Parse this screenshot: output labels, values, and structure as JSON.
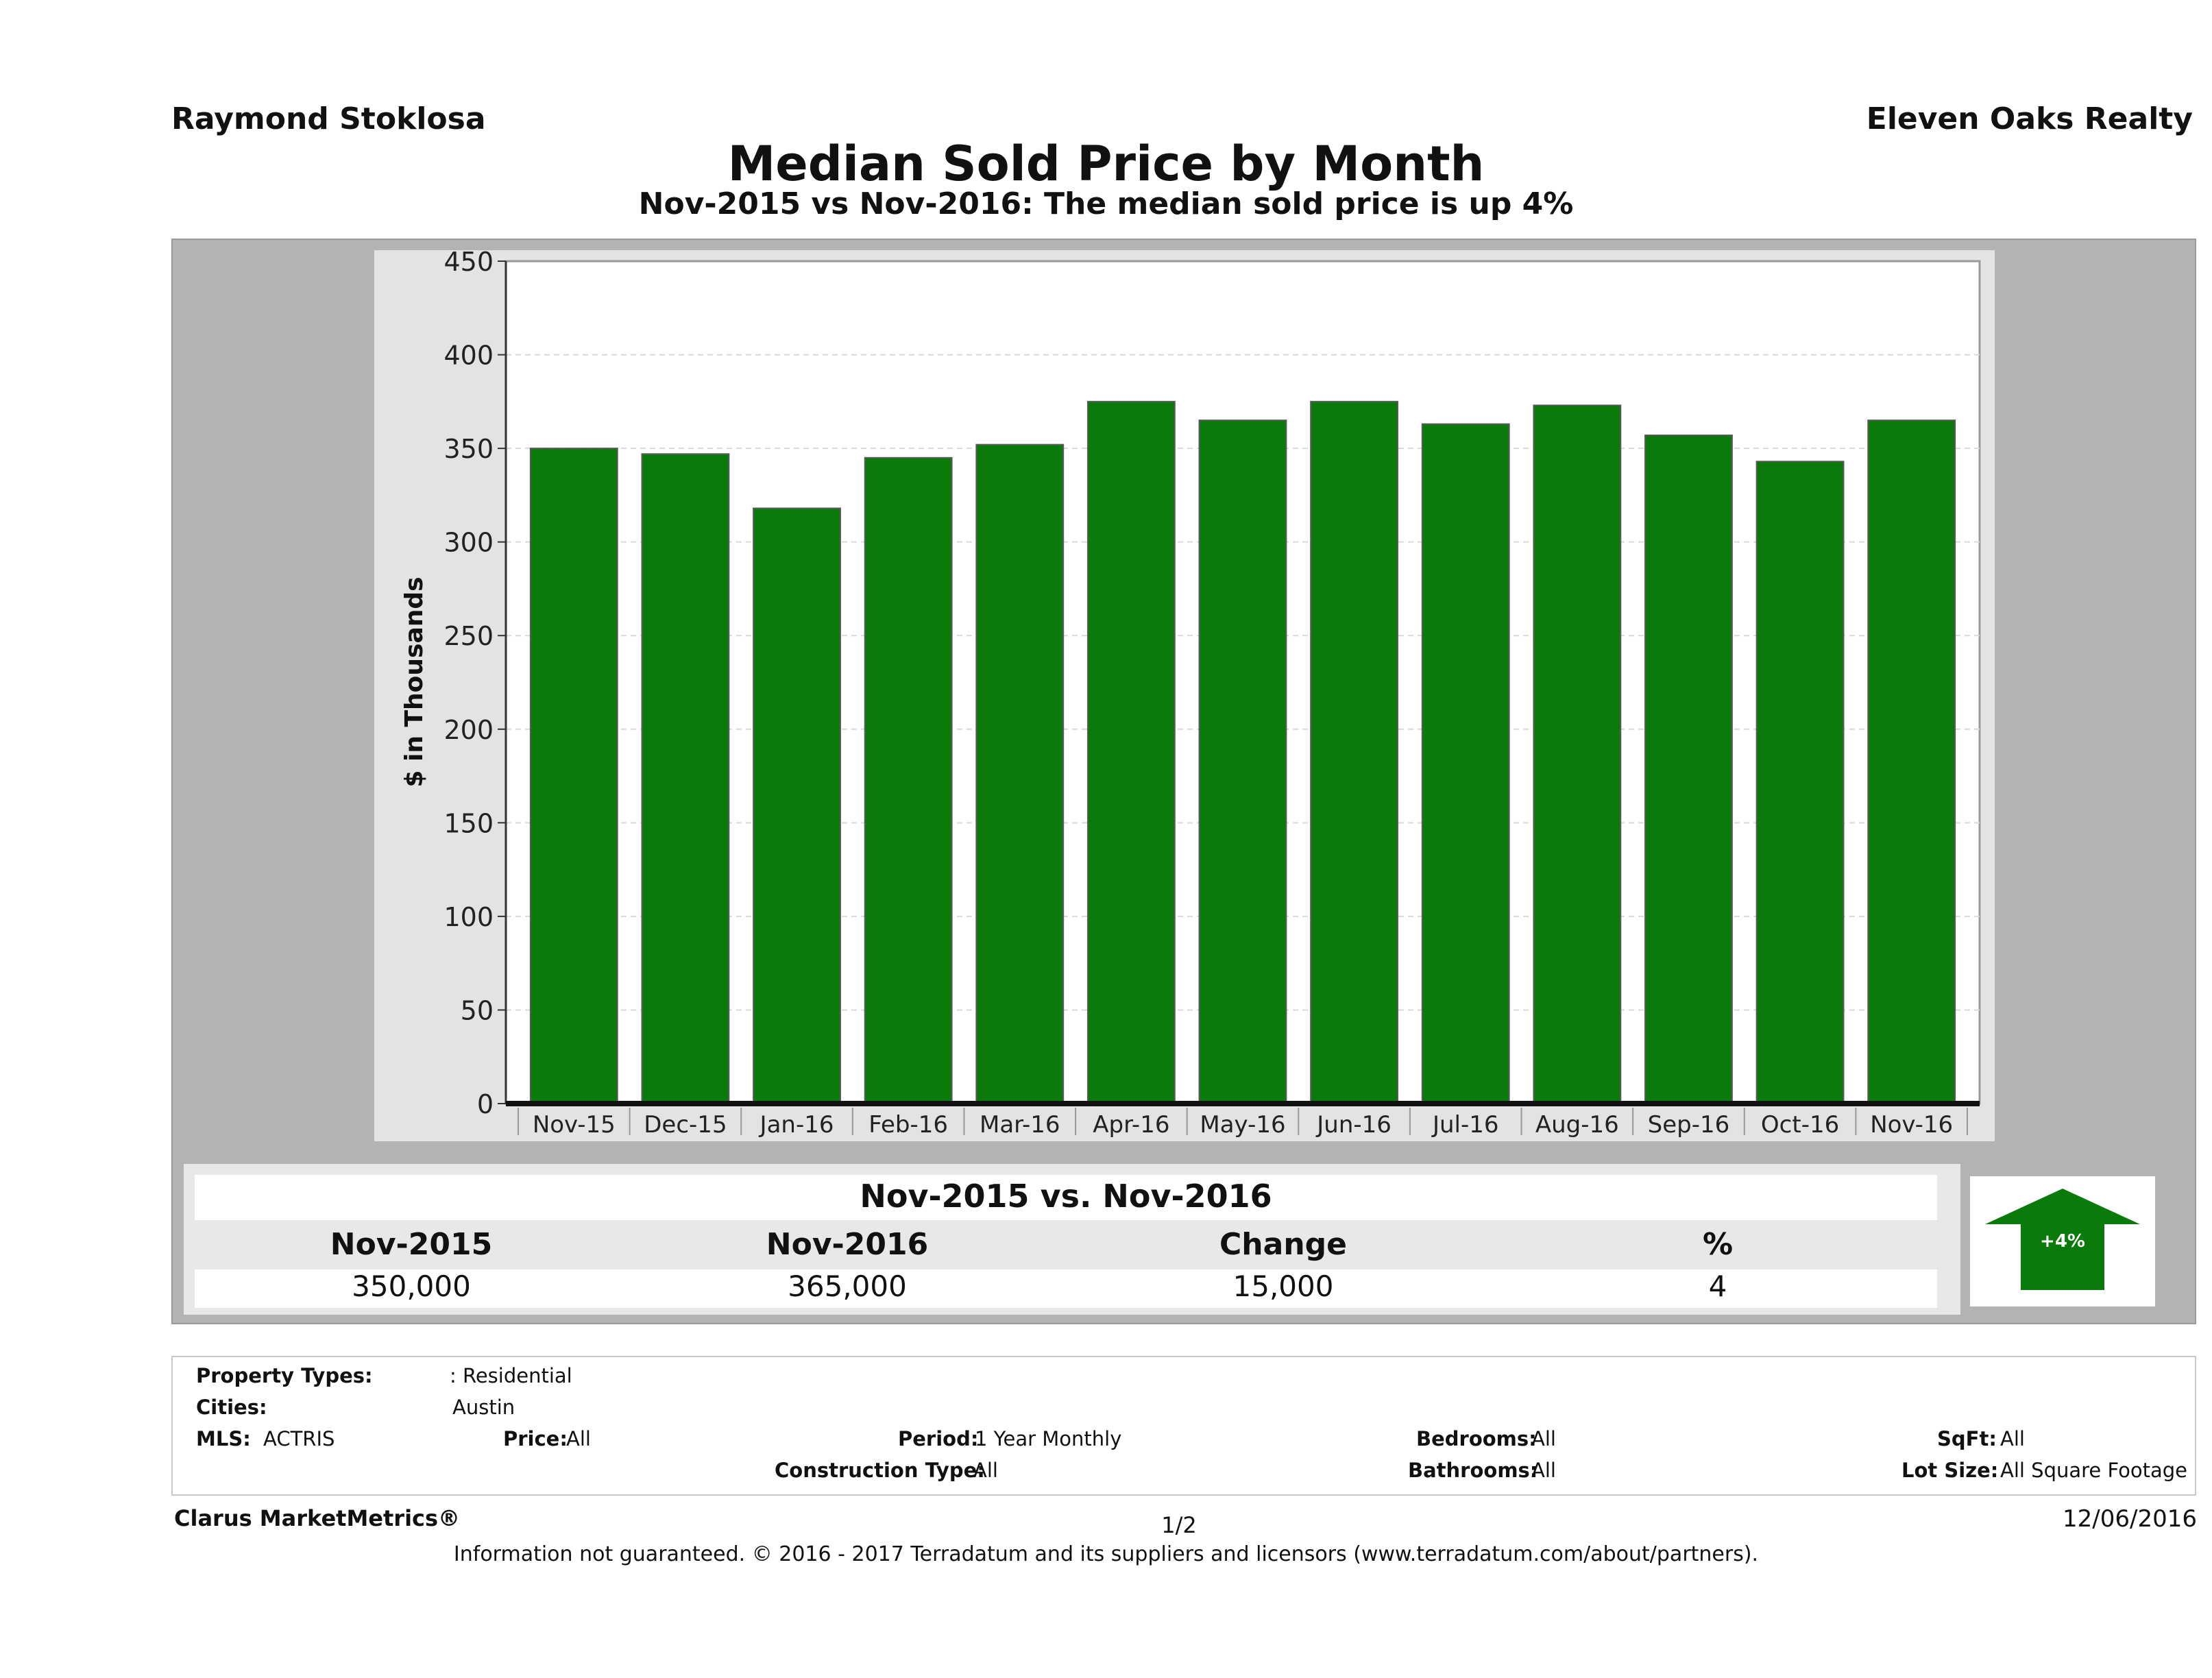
{
  "header": {
    "agent": "Raymond Stoklosa",
    "company": "Eleven Oaks Realty"
  },
  "chart_data": {
    "type": "bar",
    "title": "Median Sold Price by Month",
    "subtitle": "Nov-2015 vs Nov-2016: The median sold price is up 4%",
    "ylabel": "$ in Thousands",
    "xlabel": "",
    "ylim": [
      0,
      450
    ],
    "yticks": [
      0,
      50,
      100,
      150,
      200,
      250,
      300,
      350,
      400,
      450
    ],
    "categories": [
      "Nov-15",
      "Dec-15",
      "Jan-16",
      "Feb-16",
      "Mar-16",
      "Apr-16",
      "May-16",
      "Jun-16",
      "Jul-16",
      "Aug-16",
      "Sep-16",
      "Oct-16",
      "Nov-16"
    ],
    "values": [
      350,
      347,
      318,
      345,
      352,
      375,
      365,
      375,
      363,
      373,
      357,
      343,
      365
    ],
    "bar_color": "#0a7a0a",
    "grid": true
  },
  "summary": {
    "title": "Nov-2015 vs. Nov-2016",
    "columns": [
      {
        "header": "Nov-2015",
        "value": "350,000"
      },
      {
        "header": "Nov-2016",
        "value": "365,000"
      },
      {
        "header": "Change",
        "value": "15,000"
      },
      {
        "header": "%",
        "value": "4"
      }
    ],
    "badge": "+4%",
    "badge_color": "#0a7a0a"
  },
  "filters": {
    "property_types_label": "Property Types:",
    "property_types_value": ": Residential",
    "cities_label": "Cities:",
    "cities_value": "Austin",
    "mls_label": "MLS:",
    "mls_value": "ACTRIS",
    "price_label": "Price:",
    "price_value": "All",
    "period_label": "Period:",
    "period_value": "1 Year Monthly",
    "construction_label": "Construction Type:",
    "construction_value": "All",
    "bedrooms_label": "Bedrooms:",
    "bedrooms_value": "All",
    "bathrooms_label": "Bathrooms:",
    "bathrooms_value": "All",
    "sqft_label": "SqFt:",
    "sqft_value": "All",
    "lot_label": "Lot Size:",
    "lot_value": "All Square Footage"
  },
  "footer": {
    "brand": "Clarus MarketMetrics®",
    "page": "1/2",
    "date": "12/06/2016",
    "disclaimer": "Information not guaranteed. © 2016 - 2017 Terradatum and its suppliers and licensors (www.terradatum.com/about/partners)."
  }
}
